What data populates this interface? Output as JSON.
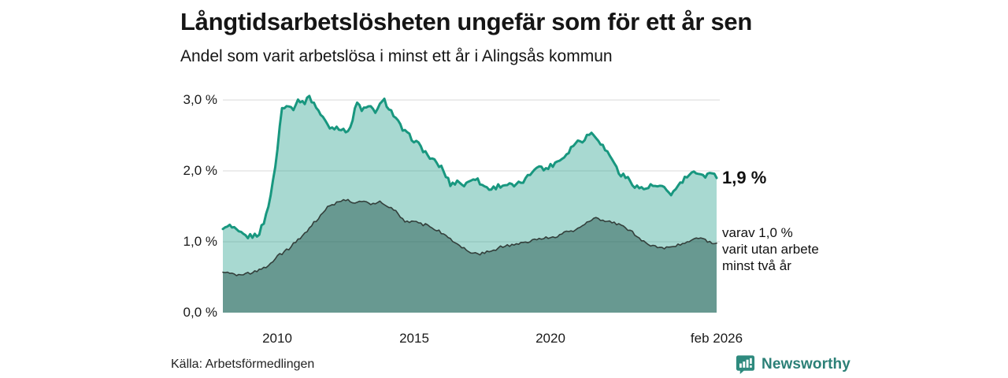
{
  "chart_data": {
    "type": "area",
    "title": "Långtidsarbetslösheten ungefär som för ett år sen",
    "subtitle": "Andel som varit arbetslösa i minst ett år i Alingsås kommun",
    "grid": true,
    "legend_position": "right-annotations",
    "x_axis": {
      "range": [
        2008.0,
        2026.083
      ],
      "ticks": [
        {
          "label": "2010",
          "year": 2010
        },
        {
          "label": "2015",
          "year": 2015
        },
        {
          "label": "2020",
          "year": 2020
        },
        {
          "label": "feb 2026",
          "year": 2026.083
        }
      ]
    },
    "y_axis": {
      "range": [
        0,
        3.2
      ],
      "unit": "%",
      "ticks": [
        {
          "label": "3,0 %",
          "value": 3.0
        },
        {
          "label": "2,0 %",
          "value": 2.0
        },
        {
          "label": "1,0 %",
          "value": 1.0
        },
        {
          "label": "0,0 %",
          "value": 0.0
        }
      ]
    },
    "series": [
      {
        "name": "Andel arbetslösa minst ett år",
        "end_value": 1.9,
        "line_color": "#18977f",
        "line_width": 3,
        "fill_color": "#1a9a86",
        "fill_opacity": 0.38,
        "noise": 0.035,
        "points": [
          [
            2008.0,
            1.18
          ],
          [
            2008.25,
            1.22
          ],
          [
            2008.6,
            1.12
          ],
          [
            2008.9,
            1.07
          ],
          [
            2009.3,
            1.1
          ],
          [
            2009.55,
            1.32
          ],
          [
            2009.8,
            1.75
          ],
          [
            2010.0,
            2.3
          ],
          [
            2010.15,
            2.88
          ],
          [
            2010.35,
            2.95
          ],
          [
            2010.55,
            2.87
          ],
          [
            2010.8,
            3.02
          ],
          [
            2010.95,
            2.93
          ],
          [
            2011.1,
            3.06
          ],
          [
            2011.35,
            2.95
          ],
          [
            2011.6,
            2.78
          ],
          [
            2011.95,
            2.6
          ],
          [
            2012.2,
            2.63
          ],
          [
            2012.45,
            2.55
          ],
          [
            2012.7,
            2.63
          ],
          [
            2012.9,
            2.97
          ],
          [
            2013.1,
            2.86
          ],
          [
            2013.35,
            2.9
          ],
          [
            2013.6,
            2.84
          ],
          [
            2013.9,
            3.0
          ],
          [
            2014.15,
            2.85
          ],
          [
            2014.6,
            2.57
          ],
          [
            2015.1,
            2.4
          ],
          [
            2015.6,
            2.18
          ],
          [
            2016.0,
            2.05
          ],
          [
            2016.35,
            1.8
          ],
          [
            2016.6,
            1.86
          ],
          [
            2016.85,
            1.79
          ],
          [
            2017.2,
            1.92
          ],
          [
            2017.5,
            1.8
          ],
          [
            2017.8,
            1.74
          ],
          [
            2018.1,
            1.79
          ],
          [
            2018.4,
            1.81
          ],
          [
            2018.7,
            1.78
          ],
          [
            2019.1,
            1.88
          ],
          [
            2019.5,
            2.08
          ],
          [
            2019.75,
            2.02
          ],
          [
            2020.0,
            2.07
          ],
          [
            2020.5,
            2.2
          ],
          [
            2020.9,
            2.4
          ],
          [
            2021.2,
            2.44
          ],
          [
            2021.45,
            2.54
          ],
          [
            2021.7,
            2.48
          ],
          [
            2022.0,
            2.3
          ],
          [
            2022.25,
            2.18
          ],
          [
            2022.5,
            1.97
          ],
          [
            2022.8,
            1.9
          ],
          [
            2023.1,
            1.79
          ],
          [
            2023.4,
            1.74
          ],
          [
            2023.7,
            1.79
          ],
          [
            2024.0,
            1.77
          ],
          [
            2024.2,
            1.74
          ],
          [
            2024.45,
            1.67
          ],
          [
            2024.7,
            1.8
          ],
          [
            2025.0,
            1.92
          ],
          [
            2025.2,
            1.97
          ],
          [
            2025.4,
            1.93
          ],
          [
            2025.55,
            1.99
          ],
          [
            2025.7,
            1.91
          ],
          [
            2025.85,
            2.01
          ],
          [
            2026.0,
            1.96
          ],
          [
            2026.083,
            1.9
          ]
        ]
      },
      {
        "name": "varav utan arbete minst två år",
        "end_value": 1.0,
        "line_color": "#333f3b",
        "line_width": 1.6,
        "fill_color": "#2e5e56",
        "fill_opacity": 0.52,
        "noise": 0.02,
        "points": [
          [
            2008.0,
            0.57
          ],
          [
            2008.5,
            0.53
          ],
          [
            2009.0,
            0.56
          ],
          [
            2009.4,
            0.61
          ],
          [
            2009.7,
            0.68
          ],
          [
            2009.95,
            0.78
          ],
          [
            2010.4,
            0.9
          ],
          [
            2010.9,
            1.08
          ],
          [
            2011.3,
            1.25
          ],
          [
            2011.8,
            1.48
          ],
          [
            2012.2,
            1.55
          ],
          [
            2012.55,
            1.6
          ],
          [
            2012.8,
            1.56
          ],
          [
            2013.1,
            1.58
          ],
          [
            2013.4,
            1.53
          ],
          [
            2013.7,
            1.57
          ],
          [
            2013.97,
            1.5
          ],
          [
            2014.3,
            1.45
          ],
          [
            2014.65,
            1.3
          ],
          [
            2015.1,
            1.27
          ],
          [
            2015.6,
            1.22
          ],
          [
            2016.0,
            1.13
          ],
          [
            2016.5,
            1.0
          ],
          [
            2016.9,
            0.88
          ],
          [
            2017.3,
            0.82
          ],
          [
            2017.8,
            0.87
          ],
          [
            2018.3,
            0.94
          ],
          [
            2018.8,
            0.97
          ],
          [
            2019.2,
            1.01
          ],
          [
            2019.7,
            1.05
          ],
          [
            2020.1,
            1.06
          ],
          [
            2020.5,
            1.13
          ],
          [
            2020.9,
            1.17
          ],
          [
            2021.3,
            1.26
          ],
          [
            2021.65,
            1.34
          ],
          [
            2022.1,
            1.28
          ],
          [
            2022.5,
            1.25
          ],
          [
            2022.9,
            1.16
          ],
          [
            2023.2,
            1.07
          ],
          [
            2023.6,
            0.96
          ],
          [
            2024.0,
            0.91
          ],
          [
            2024.4,
            0.93
          ],
          [
            2024.8,
            0.97
          ],
          [
            2025.2,
            1.04
          ],
          [
            2025.55,
            1.06
          ],
          [
            2025.85,
            0.99
          ],
          [
            2026.083,
            0.98
          ]
        ]
      }
    ],
    "annotations": {
      "end_label_total": "1,9 %",
      "end_label_subset_lines": [
        "varav 1,0 %",
        "varit utan arbete",
        "minst två år"
      ]
    }
  },
  "footer": {
    "source": "Källa: Arbetsförmedlingen",
    "brand": "Newsworthy"
  },
  "colors": {
    "accent_teal": "#18977f",
    "light_fill": "#a9d6cd",
    "dark_fill": "#6f9890",
    "grid": "#d9d9d9",
    "brand_teal": "#2c8077"
  }
}
